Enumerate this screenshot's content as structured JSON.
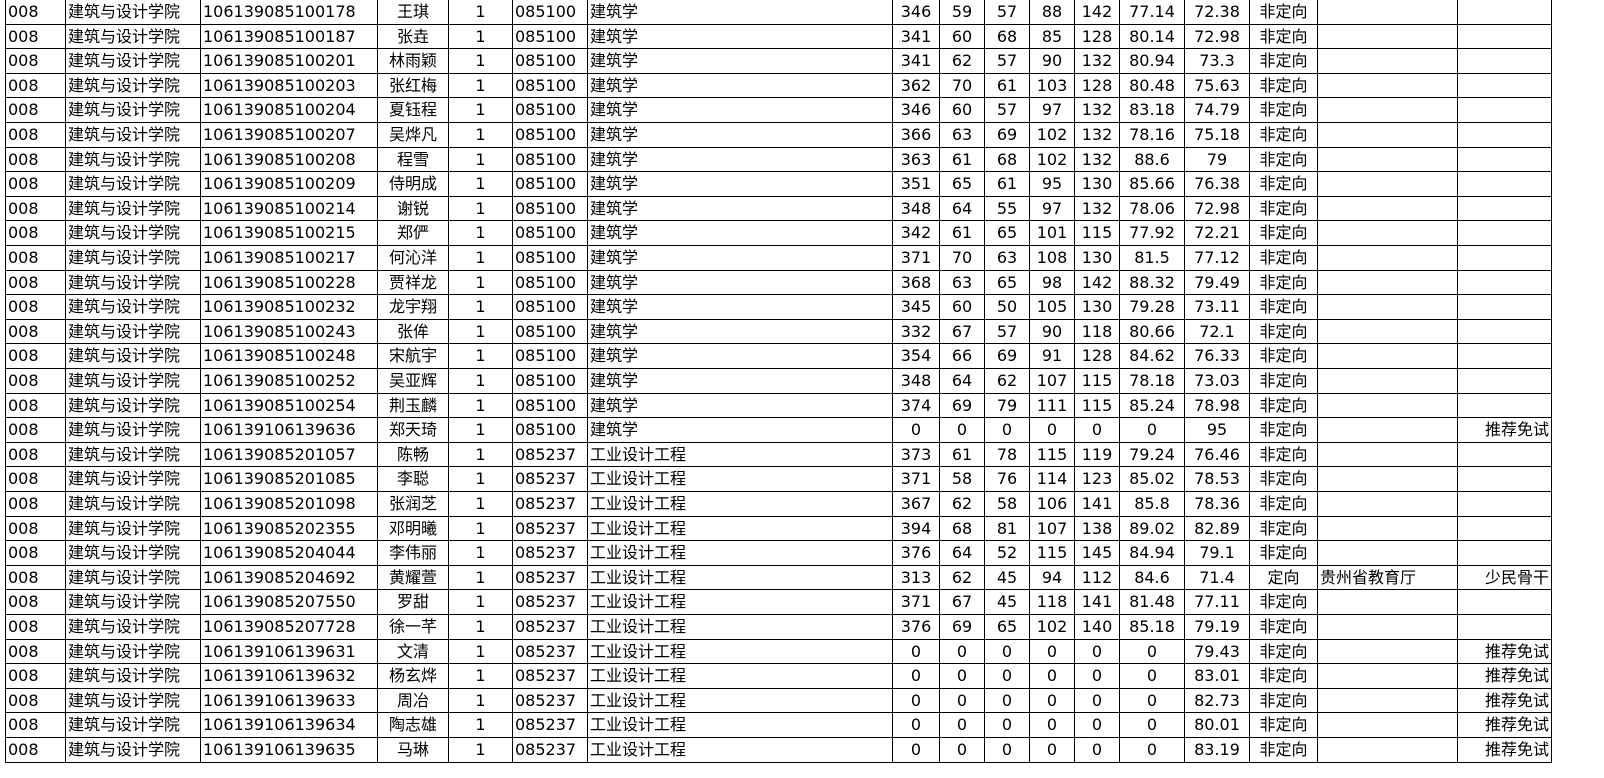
{
  "table": {
    "rows": [
      {
        "dept": "008",
        "college": "建筑与设计学院",
        "id": "106139085100178",
        "name": "王琪",
        "n": 1,
        "major_code": "085100",
        "major": "建筑学",
        "scores": [
          346,
          59,
          57,
          88,
          142,
          77.14,
          72.38
        ],
        "type": "非定向"
      },
      {
        "dept": "008",
        "college": "建筑与设计学院",
        "id": "106139085100187",
        "name": "张垚",
        "n": 1,
        "major_code": "085100",
        "major": "建筑学",
        "scores": [
          341,
          60,
          68,
          85,
          128,
          80.14,
          72.98
        ],
        "type": "非定向"
      },
      {
        "dept": "008",
        "college": "建筑与设计学院",
        "id": "106139085100201",
        "name": "林雨颖",
        "n": 1,
        "major_code": "085100",
        "major": "建筑学",
        "scores": [
          341,
          62,
          57,
          90,
          132,
          80.94,
          73.3
        ],
        "type": "非定向"
      },
      {
        "dept": "008",
        "college": "建筑与设计学院",
        "id": "106139085100203",
        "name": "张红梅",
        "n": 1,
        "major_code": "085100",
        "major": "建筑学",
        "scores": [
          362,
          70,
          61,
          103,
          128,
          80.48,
          75.63
        ],
        "type": "非定向"
      },
      {
        "dept": "008",
        "college": "建筑与设计学院",
        "id": "106139085100204",
        "name": "夏钰程",
        "n": 1,
        "major_code": "085100",
        "major": "建筑学",
        "scores": [
          346,
          60,
          57,
          97,
          132,
          83.18,
          74.79
        ],
        "type": "非定向"
      },
      {
        "dept": "008",
        "college": "建筑与设计学院",
        "id": "106139085100207",
        "name": "吴烨凡",
        "n": 1,
        "major_code": "085100",
        "major": "建筑学",
        "scores": [
          366,
          63,
          69,
          102,
          132,
          78.16,
          75.18
        ],
        "type": "非定向"
      },
      {
        "dept": "008",
        "college": "建筑与设计学院",
        "id": "106139085100208",
        "name": "程雪",
        "n": 1,
        "major_code": "085100",
        "major": "建筑学",
        "scores": [
          363,
          61,
          68,
          102,
          132,
          88.6,
          79
        ],
        "type": "非定向"
      },
      {
        "dept": "008",
        "college": "建筑与设计学院",
        "id": "106139085100209",
        "name": "侍明成",
        "n": 1,
        "major_code": "085100",
        "major": "建筑学",
        "scores": [
          351,
          65,
          61,
          95,
          130,
          85.66,
          76.38
        ],
        "type": "非定向"
      },
      {
        "dept": "008",
        "college": "建筑与设计学院",
        "id": "106139085100214",
        "name": "谢锐",
        "n": 1,
        "major_code": "085100",
        "major": "建筑学",
        "scores": [
          348,
          64,
          55,
          97,
          132,
          78.06,
          72.98
        ],
        "type": "非定向"
      },
      {
        "dept": "008",
        "college": "建筑与设计学院",
        "id": "106139085100215",
        "name": "郑俨",
        "n": 1,
        "major_code": "085100",
        "major": "建筑学",
        "scores": [
          342,
          61,
          65,
          101,
          115,
          77.92,
          72.21
        ],
        "type": "非定向"
      },
      {
        "dept": "008",
        "college": "建筑与设计学院",
        "id": "106139085100217",
        "name": "何沁洋",
        "n": 1,
        "major_code": "085100",
        "major": "建筑学",
        "scores": [
          371,
          70,
          63,
          108,
          130,
          81.5,
          77.12
        ],
        "type": "非定向"
      },
      {
        "dept": "008",
        "college": "建筑与设计学院",
        "id": "106139085100228",
        "name": "贾祥龙",
        "n": 1,
        "major_code": "085100",
        "major": "建筑学",
        "scores": [
          368,
          63,
          65,
          98,
          142,
          88.32,
          79.49
        ],
        "type": "非定向"
      },
      {
        "dept": "008",
        "college": "建筑与设计学院",
        "id": "106139085100232",
        "name": "龙宇翔",
        "n": 1,
        "major_code": "085100",
        "major": "建筑学",
        "scores": [
          345,
          60,
          50,
          105,
          130,
          79.28,
          73.11
        ],
        "type": "非定向"
      },
      {
        "dept": "008",
        "college": "建筑与设计学院",
        "id": "106139085100243",
        "name": "张侔",
        "n": 1,
        "major_code": "085100",
        "major": "建筑学",
        "scores": [
          332,
          67,
          57,
          90,
          118,
          80.66,
          72.1
        ],
        "type": "非定向"
      },
      {
        "dept": "008",
        "college": "建筑与设计学院",
        "id": "106139085100248",
        "name": "宋航宇",
        "n": 1,
        "major_code": "085100",
        "major": "建筑学",
        "scores": [
          354,
          66,
          69,
          91,
          128,
          84.62,
          76.33
        ],
        "type": "非定向"
      },
      {
        "dept": "008",
        "college": "建筑与设计学院",
        "id": "106139085100252",
        "name": "吴亚辉",
        "n": 1,
        "major_code": "085100",
        "major": "建筑学",
        "scores": [
          348,
          64,
          62,
          107,
          115,
          78.18,
          73.03
        ],
        "type": "非定向"
      },
      {
        "dept": "008",
        "college": "建筑与设计学院",
        "id": "106139085100254",
        "name": "荆玉麟",
        "n": 1,
        "major_code": "085100",
        "major": "建筑学",
        "scores": [
          374,
          69,
          79,
          111,
          115,
          85.24,
          78.98
        ],
        "type": "非定向"
      },
      {
        "dept": "008",
        "college": "建筑与设计学院",
        "id": "106139106139636",
        "name": "郑天琦",
        "n": 1,
        "major_code": "085100",
        "major": "建筑学",
        "scores": [
          0,
          0,
          0,
          0,
          0,
          0,
          95
        ],
        "type": "非定向",
        "note": "推荐免试"
      },
      {
        "dept": "008",
        "college": "建筑与设计学院",
        "id": "106139085201057",
        "name": "陈畅",
        "n": 1,
        "major_code": "085237",
        "major": "工业设计工程",
        "scores": [
          373,
          61,
          78,
          115,
          119,
          79.24,
          76.46
        ],
        "type": "非定向"
      },
      {
        "dept": "008",
        "college": "建筑与设计学院",
        "id": "106139085201085",
        "name": "李聪",
        "n": 1,
        "major_code": "085237",
        "major": "工业设计工程",
        "scores": [
          371,
          58,
          76,
          114,
          123,
          85.02,
          78.53
        ],
        "type": "非定向"
      },
      {
        "dept": "008",
        "college": "建筑与设计学院",
        "id": "106139085201098",
        "name": "张润芝",
        "n": 1,
        "major_code": "085237",
        "major": "工业设计工程",
        "scores": [
          367,
          62,
          58,
          106,
          141,
          85.8,
          78.36
        ],
        "type": "非定向"
      },
      {
        "dept": "008",
        "college": "建筑与设计学院",
        "id": "106139085202355",
        "name": "邓明曦",
        "n": 1,
        "major_code": "085237",
        "major": "工业设计工程",
        "scores": [
          394,
          68,
          81,
          107,
          138,
          89.02,
          82.89
        ],
        "type": "非定向"
      },
      {
        "dept": "008",
        "college": "建筑与设计学院",
        "id": "106139085204044",
        "name": "李伟丽",
        "n": 1,
        "major_code": "085237",
        "major": "工业设计工程",
        "scores": [
          376,
          64,
          52,
          115,
          145,
          84.94,
          79.1
        ],
        "type": "非定向"
      },
      {
        "dept": "008",
        "college": "建筑与设计学院",
        "id": "106139085204692",
        "name": "黄耀萱",
        "n": 1,
        "major_code": "085237",
        "major": "工业设计工程",
        "scores": [
          313,
          62,
          45,
          94,
          112,
          84.6,
          71.4
        ],
        "type": "定向",
        "unit": "贵州省教育厅",
        "note": "少民骨干"
      },
      {
        "dept": "008",
        "college": "建筑与设计学院",
        "id": "106139085207550",
        "name": "罗甜",
        "n": 1,
        "major_code": "085237",
        "major": "工业设计工程",
        "scores": [
          371,
          67,
          45,
          118,
          141,
          81.48,
          77.11
        ],
        "type": "非定向"
      },
      {
        "dept": "008",
        "college": "建筑与设计学院",
        "id": "106139085207728",
        "name": "徐一芊",
        "n": 1,
        "major_code": "085237",
        "major": "工业设计工程",
        "scores": [
          376,
          69,
          65,
          102,
          140,
          85.18,
          79.19
        ],
        "type": "非定向"
      },
      {
        "dept": "008",
        "college": "建筑与设计学院",
        "id": "106139106139631",
        "name": "文清",
        "n": 1,
        "major_code": "085237",
        "major": "工业设计工程",
        "scores": [
          0,
          0,
          0,
          0,
          0,
          0,
          79.43
        ],
        "type": "非定向",
        "note": "推荐免试"
      },
      {
        "dept": "008",
        "college": "建筑与设计学院",
        "id": "106139106139632",
        "name": "杨玄烨",
        "n": 1,
        "major_code": "085237",
        "major": "工业设计工程",
        "scores": [
          0,
          0,
          0,
          0,
          0,
          0,
          83.01
        ],
        "type": "非定向",
        "note": "推荐免试"
      },
      {
        "dept": "008",
        "college": "建筑与设计学院",
        "id": "106139106139633",
        "name": "周冶",
        "n": 1,
        "major_code": "085237",
        "major": "工业设计工程",
        "scores": [
          0,
          0,
          0,
          0,
          0,
          0,
          82.73
        ],
        "type": "非定向",
        "note": "推荐免试"
      },
      {
        "dept": "008",
        "college": "建筑与设计学院",
        "id": "106139106139634",
        "name": "陶志雄",
        "n": 1,
        "major_code": "085237",
        "major": "工业设计工程",
        "scores": [
          0,
          0,
          0,
          0,
          0,
          0,
          80.01
        ],
        "type": "非定向",
        "note": "推荐免试"
      },
      {
        "dept": "008",
        "college": "建筑与设计学院",
        "id": "106139106139635",
        "name": "马琳",
        "n": 1,
        "major_code": "085237",
        "major": "工业设计工程",
        "scores": [
          0,
          0,
          0,
          0,
          0,
          0,
          83.19
        ],
        "type": "非定向",
        "note": "推荐免试"
      }
    ]
  }
}
